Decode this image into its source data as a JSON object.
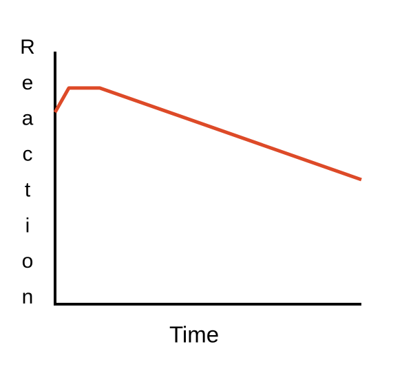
{
  "chart_data": {
    "type": "line",
    "xlabel": "Time",
    "ylabel": "Reaction",
    "x": [
      0,
      4.5,
      14.6,
      100
    ],
    "values": [
      76,
      85.6,
      85.6,
      49.3
    ],
    "color": "#dd4a28",
    "xlim": [
      0,
      100
    ],
    "ylim": [
      0,
      100
    ]
  }
}
